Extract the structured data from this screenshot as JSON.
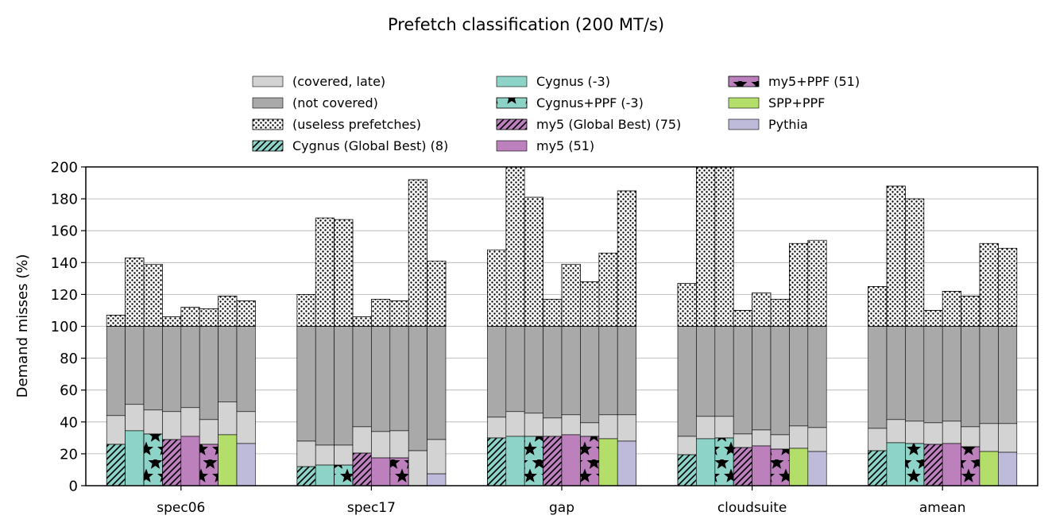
{
  "chart_data": {
    "type": "bar",
    "stacked": true,
    "title": "Prefetch classification (200 MT/s)",
    "xlabel": "",
    "ylabel": "Demand misses (%)",
    "ylim": [
      0,
      200
    ],
    "yticks": [
      0,
      20,
      40,
      60,
      80,
      100,
      120,
      140,
      160,
      180,
      200
    ],
    "grid": "horizontal",
    "legend_position": "top-center",
    "categories": [
      "spec06",
      "spec17",
      "gap",
      "cloudsuite",
      "amean"
    ],
    "segment_legend": [
      {
        "key": "late",
        "label": "(covered, late)",
        "color": "#d3d3d3",
        "pattern": "none"
      },
      {
        "key": "notcov",
        "label": "(not covered)",
        "color": "#a9a9a9",
        "pattern": "none"
      },
      {
        "key": "useless",
        "label": "(useless prefetches)",
        "color": "#ffffff",
        "pattern": "dots"
      }
    ],
    "series": [
      {
        "name": "Cygnus (Global Best) (8)",
        "color": "#8dd3c7",
        "pattern": "hatch",
        "timely": [
          26,
          12,
          30,
          19.5,
          22
        ],
        "covered_total": [
          44,
          28,
          43,
          31,
          36
        ],
        "total": [
          107,
          120,
          148,
          127,
          125
        ]
      },
      {
        "name": "Cygnus (-3)",
        "color": "#8dd3c7",
        "pattern": "none",
        "timely": [
          34.5,
          13,
          31,
          29.5,
          27
        ],
        "covered_total": [
          51,
          25.5,
          46.5,
          43.5,
          41.5
        ],
        "total": [
          143,
          168,
          200,
          200,
          188
        ]
      },
      {
        "name": "Cygnus+PPF (-3)",
        "color": "#8dd3c7",
        "pattern": "stars",
        "timely": [
          32.5,
          13,
          31,
          30,
          26.5
        ],
        "covered_total": [
          47.5,
          25.5,
          45.5,
          43.5,
          40.5
        ],
        "total": [
          139,
          167,
          181,
          200,
          180
        ]
      },
      {
        "name": "my5 (Global Best) (75)",
        "color": "#bc80bd",
        "pattern": "hatch",
        "timely": [
          29,
          20.5,
          31,
          24,
          26
        ],
        "covered_total": [
          46.5,
          37,
          42.5,
          32.5,
          39.5
        ],
        "total": [
          106,
          106,
          117,
          110,
          110
        ]
      },
      {
        "name": "my5 (51)",
        "color": "#bc80bd",
        "pattern": "none",
        "timely": [
          31,
          17.5,
          32,
          25,
          26.5
        ],
        "covered_total": [
          49,
          34,
          44.5,
          35,
          40.5
        ],
        "total": [
          112,
          117,
          139,
          121,
          122
        ]
      },
      {
        "name": "my5+PPF (51)",
        "color": "#bc80bd",
        "pattern": "stars",
        "timely": [
          26,
          17.5,
          31,
          23,
          24.5
        ],
        "covered_total": [
          41.5,
          34.5,
          39.5,
          32,
          37
        ],
        "total": [
          111,
          116,
          128,
          117,
          119
        ]
      },
      {
        "name": "SPP+PPF",
        "color": "#b3de69",
        "pattern": "none",
        "timely": [
          32,
          0,
          29.5,
          23.5,
          21.5
        ],
        "covered_total": [
          52.5,
          22,
          44.5,
          37.5,
          39
        ],
        "total": [
          119,
          192,
          146,
          152,
          152
        ]
      },
      {
        "name": "Pythia",
        "color": "#bebada",
        "pattern": "none",
        "timely": [
          26.5,
          7.5,
          28,
          21.5,
          21
        ],
        "covered_total": [
          46.5,
          29,
          44.5,
          36.5,
          39
        ],
        "total": [
          116,
          141,
          185,
          154,
          149
        ]
      }
    ]
  }
}
